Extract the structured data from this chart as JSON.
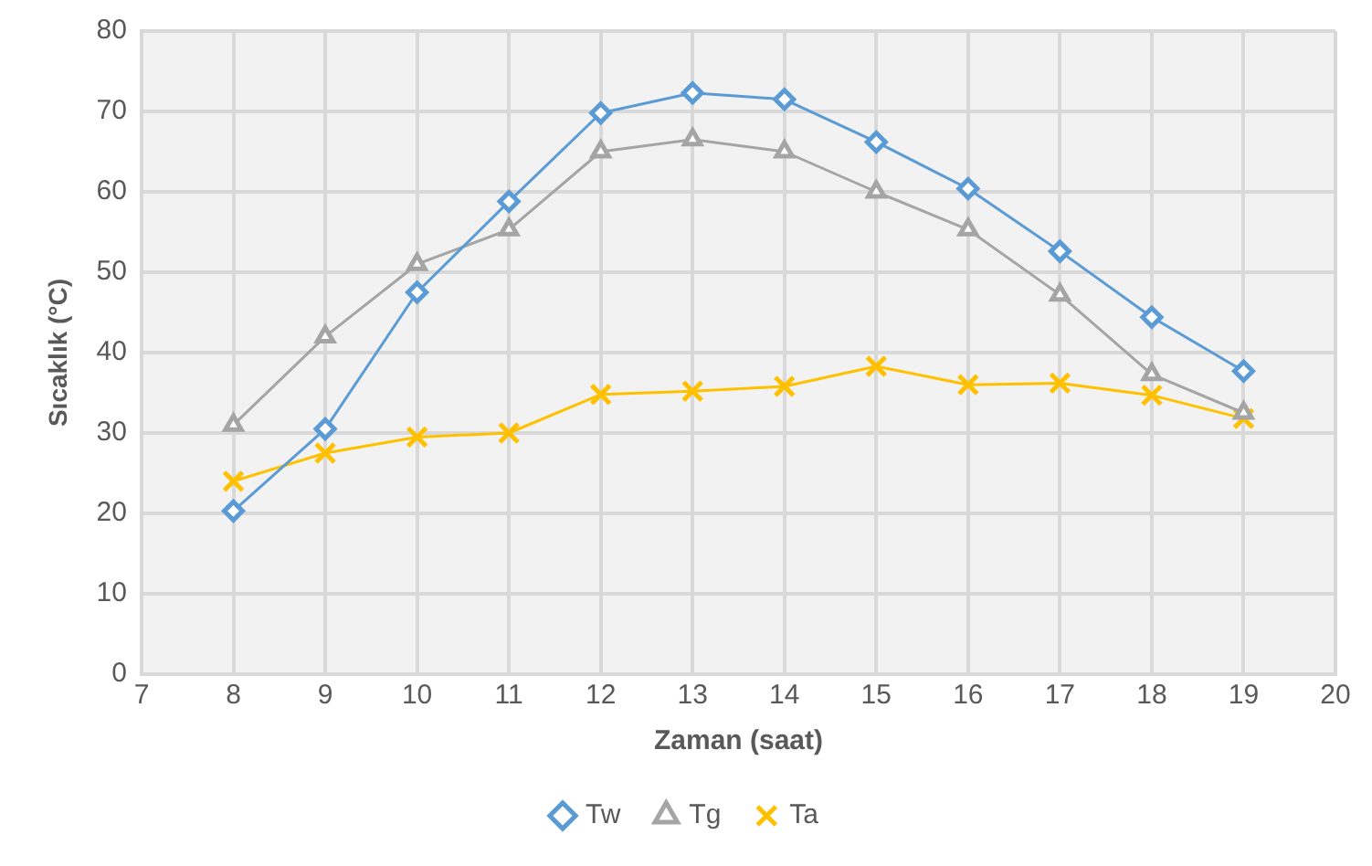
{
  "chart_data": {
    "type": "line",
    "xlabel": "Zaman (saat)",
    "ylabel": "Sıcaklık (°C)",
    "x": [
      8,
      9,
      10,
      11,
      12,
      13,
      14,
      15,
      16,
      17,
      18,
      19
    ],
    "series": [
      {
        "name": "Tw",
        "color": "#5b9bd5",
        "marker": "diamond",
        "values": [
          20.3,
          30.5,
          47.5,
          58.8,
          69.8,
          72.3,
          71.5,
          66.2,
          60.4,
          52.6,
          44.4,
          37.7
        ]
      },
      {
        "name": "Tg",
        "color": "#a5a5a5",
        "marker": "triangle",
        "values": [
          31,
          42,
          51,
          55.3,
          65,
          66.5,
          65,
          60,
          55.3,
          47.2,
          37.3,
          32.5
        ]
      },
      {
        "name": "Ta",
        "color": "#ffc000",
        "marker": "cross",
        "values": [
          24,
          27.5,
          29.5,
          30,
          34.8,
          35.2,
          35.8,
          38.3,
          36,
          36.2,
          34.7,
          31.8
        ]
      }
    ],
    "xlim": [
      7,
      20
    ],
    "xticks": [
      7,
      8,
      9,
      10,
      11,
      12,
      13,
      14,
      15,
      16,
      17,
      18,
      19,
      20
    ],
    "ylim": [
      0,
      80
    ],
    "yticks": [
      0,
      10,
      20,
      30,
      40,
      50,
      60,
      70,
      80
    ],
    "grid": true,
    "legend": "bottom"
  }
}
